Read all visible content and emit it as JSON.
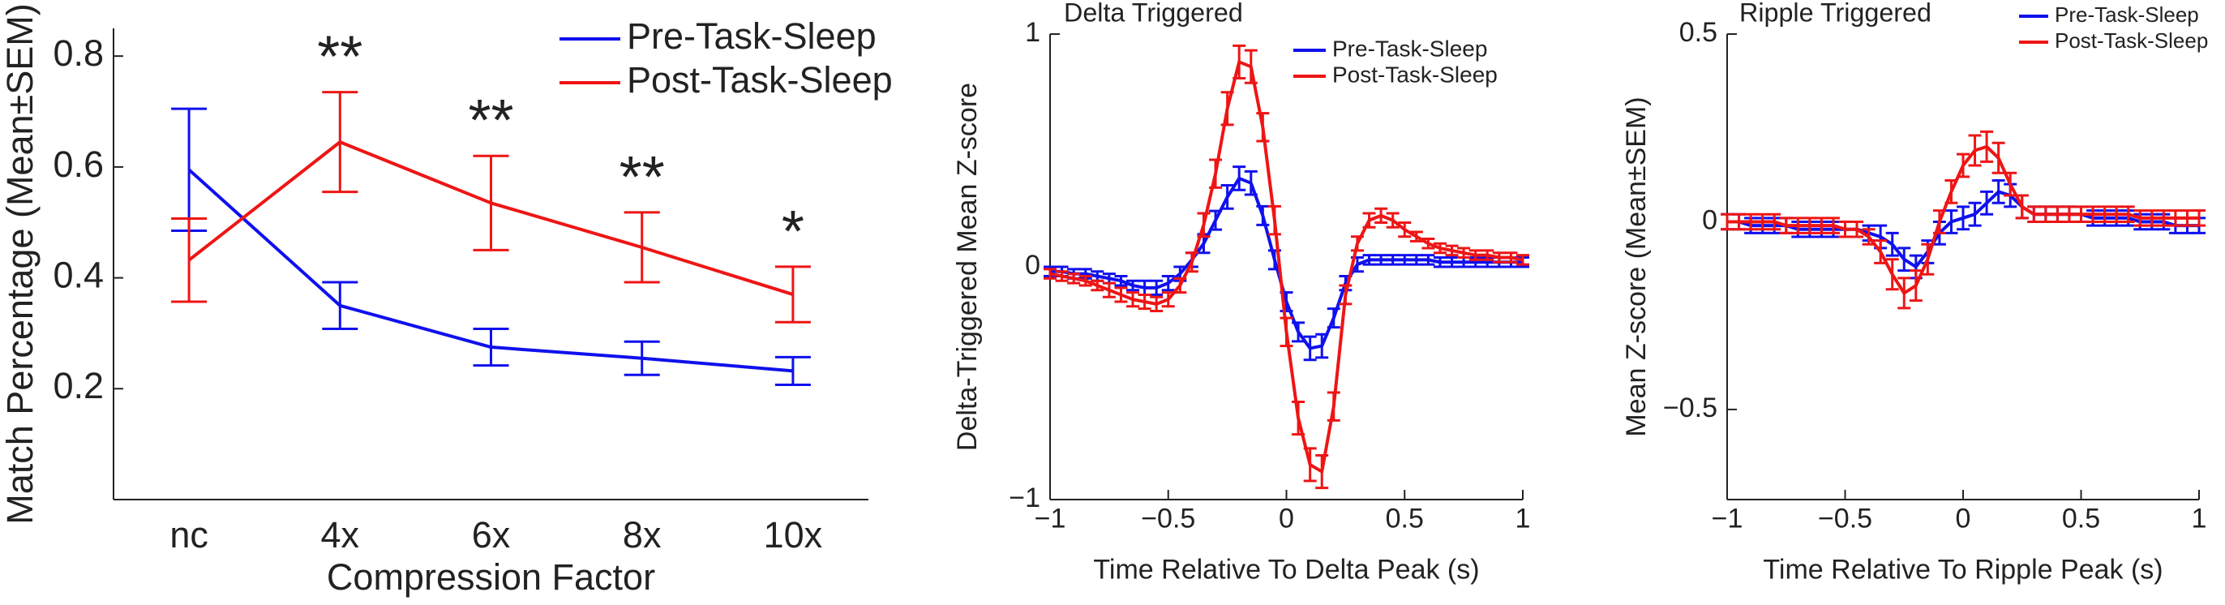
{
  "chart_data": [
    {
      "type": "line",
      "xlabel": "Compression Factor",
      "ylabel": "Match Percentage (Mean±SEM)",
      "categories": [
        "nc",
        "4x",
        "6x",
        "8x",
        "10x"
      ],
      "ylim": [
        0,
        0.85
      ],
      "yticks": [
        0.2,
        0.4,
        0.6,
        0.8
      ],
      "legend": "upper right",
      "series": [
        {
          "name": "Pre-Task-Sleep",
          "color": "#1010ee",
          "values": [
            0.595,
            0.35,
            0.275,
            0.255,
            0.232
          ],
          "errors": [
            0.11,
            0.042,
            0.033,
            0.03,
            0.025
          ]
        },
        {
          "name": "Post-Task-Sleep",
          "color": "#ee1515",
          "values": [
            0.432,
            0.645,
            0.535,
            0.455,
            0.37
          ],
          "errors": [
            0.075,
            0.09,
            0.085,
            0.063,
            0.05
          ]
        }
      ],
      "significance": [
        null,
        "**",
        "**",
        "**",
        "*"
      ]
    },
    {
      "type": "line",
      "title": "Delta Triggered",
      "xlabel": "Time Relative To Delta Peak (s)",
      "ylabel": "Delta-Triggered Mean Z-score",
      "x": [
        -1,
        -0.95,
        -0.9,
        -0.85,
        -0.8,
        -0.75,
        -0.7,
        -0.65,
        -0.6,
        -0.55,
        -0.5,
        -0.45,
        -0.4,
        -0.35,
        -0.3,
        -0.25,
        -0.2,
        -0.15,
        -0.1,
        -0.05,
        0,
        0.05,
        0.1,
        0.15,
        0.2,
        0.25,
        0.3,
        0.35,
        0.4,
        0.45,
        0.5,
        0.55,
        0.6,
        0.65,
        0.7,
        0.75,
        0.8,
        0.85,
        0.9,
        0.95,
        1
      ],
      "xlim": [
        -1,
        1
      ],
      "xticks": [
        {
          "value": -1,
          "label": "−1"
        },
        {
          "value": -0.5,
          "label": "−0.5"
        },
        0,
        0.5,
        1
      ],
      "ylim": [
        -1,
        1
      ],
      "yticks": [
        {
          "value": -1,
          "label": "−1"
        },
        0,
        1
      ],
      "legend": "upper right",
      "series": [
        {
          "name": "Pre-Task-Sleep",
          "color": "#1010ee",
          "values": [
            -0.02,
            -0.02,
            -0.03,
            -0.03,
            -0.04,
            -0.05,
            -0.06,
            -0.08,
            -0.09,
            -0.09,
            -0.07,
            -0.03,
            0.03,
            0.1,
            0.2,
            0.3,
            0.38,
            0.36,
            0.22,
            0.03,
            -0.15,
            -0.28,
            -0.35,
            -0.34,
            -0.22,
            -0.07,
            0.01,
            0.03,
            0.03,
            0.03,
            0.03,
            0.03,
            0.03,
            0.02,
            0.02,
            0.02,
            0.02,
            0.02,
            0.02,
            0.02,
            0.02
          ],
          "errors": [
            0.02,
            0.02,
            0.02,
            0.02,
            0.02,
            0.02,
            0.02,
            0.02,
            0.03,
            0.03,
            0.03,
            0.03,
            0.03,
            0.04,
            0.04,
            0.05,
            0.05,
            0.05,
            0.04,
            0.04,
            0.04,
            0.04,
            0.05,
            0.05,
            0.04,
            0.03,
            0.03,
            0.02,
            0.02,
            0.02,
            0.02,
            0.02,
            0.02,
            0.02,
            0.02,
            0.02,
            0.02,
            0.02,
            0.02,
            0.02,
            0.02
          ]
        },
        {
          "name": "Post-Task-Sleep",
          "color": "#ee1515",
          "values": [
            -0.03,
            -0.04,
            -0.05,
            -0.06,
            -0.08,
            -0.1,
            -0.12,
            -0.14,
            -0.15,
            -0.16,
            -0.14,
            -0.08,
            0.02,
            0.18,
            0.4,
            0.68,
            0.88,
            0.86,
            0.6,
            0.2,
            -0.28,
            -0.65,
            -0.85,
            -0.88,
            -0.6,
            -0.12,
            0.1,
            0.2,
            0.22,
            0.2,
            0.16,
            0.13,
            0.1,
            0.08,
            0.07,
            0.06,
            0.05,
            0.05,
            0.04,
            0.04,
            0.03
          ],
          "errors": [
            0.02,
            0.02,
            0.02,
            0.02,
            0.02,
            0.03,
            0.03,
            0.03,
            0.03,
            0.03,
            0.03,
            0.03,
            0.04,
            0.05,
            0.06,
            0.07,
            0.07,
            0.07,
            0.06,
            0.06,
            0.06,
            0.07,
            0.07,
            0.07,
            0.06,
            0.04,
            0.03,
            0.03,
            0.03,
            0.03,
            0.03,
            0.02,
            0.02,
            0.02,
            0.02,
            0.02,
            0.02,
            0.02,
            0.02,
            0.02,
            0.02
          ]
        }
      ]
    },
    {
      "type": "line",
      "title": "Ripple Triggered",
      "xlabel": "Time Relative To Ripple Peak (s)",
      "ylabel": "Mean Z-score (Mean±SEM)",
      "x": [
        -1,
        -0.95,
        -0.9,
        -0.85,
        -0.8,
        -0.75,
        -0.7,
        -0.65,
        -0.6,
        -0.55,
        -0.5,
        -0.45,
        -0.4,
        -0.35,
        -0.3,
        -0.25,
        -0.2,
        -0.15,
        -0.1,
        -0.05,
        0,
        0.05,
        0.1,
        0.15,
        0.2,
        0.25,
        0.3,
        0.35,
        0.4,
        0.45,
        0.5,
        0.55,
        0.6,
        0.65,
        0.7,
        0.75,
        0.8,
        0.85,
        0.9,
        0.95,
        1
      ],
      "xlim": [
        -1,
        1
      ],
      "xticks": [
        {
          "value": -1,
          "label": "−1"
        },
        {
          "value": -0.5,
          "label": "−0.5"
        },
        0,
        0.5,
        1
      ],
      "ylim": [
        -0.74,
        0.5
      ],
      "yticks": [
        {
          "value": -0.5,
          "label": "−0.5"
        },
        0,
        0.5
      ],
      "legend": "upper right",
      "series": [
        {
          "name": "Pre-Task-Sleep",
          "color": "#1010ee",
          "values": [
            0,
            0,
            -0.01,
            -0.01,
            -0.01,
            -0.01,
            -0.02,
            -0.02,
            -0.02,
            -0.02,
            -0.02,
            -0.02,
            -0.03,
            -0.04,
            -0.06,
            -0.1,
            -0.12,
            -0.08,
            -0.03,
            0,
            0.01,
            0.02,
            0.05,
            0.08,
            0.07,
            0.04,
            0.02,
            0.02,
            0.02,
            0.02,
            0.02,
            0.01,
            0.01,
            0.01,
            0.01,
            0,
            0,
            0,
            -0.01,
            -0.01,
            -0.01
          ],
          "errors": [
            0.02,
            0.02,
            0.02,
            0.02,
            0.02,
            0.02,
            0.02,
            0.02,
            0.02,
            0.02,
            0.02,
            0.02,
            0.02,
            0.03,
            0.03,
            0.03,
            0.03,
            0.03,
            0.03,
            0.03,
            0.03,
            0.03,
            0.03,
            0.03,
            0.03,
            0.03,
            0.02,
            0.02,
            0.02,
            0.02,
            0.02,
            0.02,
            0.02,
            0.02,
            0.02,
            0.02,
            0.02,
            0.02,
            0.02,
            0.02,
            0.02
          ]
        },
        {
          "name": "Post-Task-Sleep",
          "color": "#ee1515",
          "values": [
            0,
            0,
            0,
            0,
            0,
            -0.01,
            -0.01,
            -0.01,
            -0.01,
            -0.01,
            -0.02,
            -0.02,
            -0.04,
            -0.08,
            -0.14,
            -0.19,
            -0.17,
            -0.1,
            0,
            0.08,
            0.15,
            0.19,
            0.2,
            0.17,
            0.1,
            0.04,
            0.02,
            0.02,
            0.02,
            0.02,
            0.02,
            0.02,
            0.02,
            0.02,
            0.02,
            0.01,
            0.01,
            0.01,
            0.01,
            0.01,
            0.01
          ],
          "errors": [
            0.02,
            0.02,
            0.02,
            0.02,
            0.02,
            0.02,
            0.02,
            0.02,
            0.02,
            0.02,
            0.02,
            0.02,
            0.02,
            0.03,
            0.04,
            0.04,
            0.04,
            0.04,
            0.03,
            0.03,
            0.03,
            0.04,
            0.04,
            0.04,
            0.03,
            0.03,
            0.02,
            0.02,
            0.02,
            0.02,
            0.02,
            0.02,
            0.02,
            0.02,
            0.02,
            0.02,
            0.02,
            0.02,
            0.02,
            0.02,
            0.02
          ]
        }
      ]
    }
  ]
}
